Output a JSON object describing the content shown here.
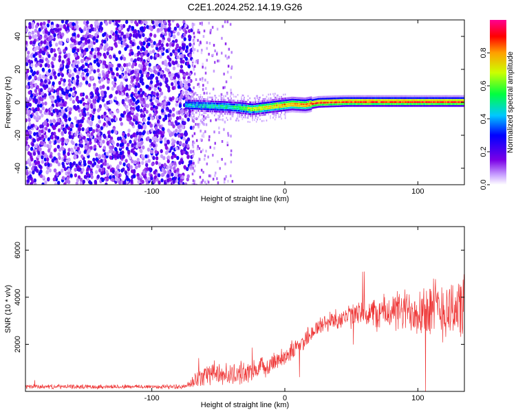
{
  "title": "C2E1.2024.252.14.19.G26",
  "chart_data": [
    {
      "type": "heatmap",
      "xlabel": "Height of straight line (km)",
      "ylabel": "Frequency (Hz)",
      "xlim": [
        -195,
        135
      ],
      "ylim": [
        -50,
        50
      ],
      "xticks": [
        -100,
        0,
        100
      ],
      "yticks": [
        -40,
        -20,
        0,
        20,
        40
      ],
      "noise_region_x": [
        -195,
        -70
      ],
      "sparse_region_x": [
        -70,
        -40
      ],
      "tone_track": {
        "x": [
          -75,
          -60,
          -45,
          -35,
          -25,
          -15,
          -5,
          5,
          15,
          25,
          45,
          80,
          135
        ],
        "freq": [
          -1.5,
          -2,
          -2.5,
          -3,
          -4,
          -3,
          -2,
          -1,
          -1.5,
          0,
          0.5,
          0.5,
          0.5
        ],
        "amplitude": [
          0.45,
          0.5,
          0.55,
          0.6,
          0.75,
          0.8,
          0.85,
          0.85,
          0.9,
          0.95,
          0.95,
          0.95,
          0.95
        ]
      },
      "colorbar": {
        "label": "Normalized spectral amplitude",
        "range": [
          0,
          1
        ],
        "ticks": [
          0.0,
          0.2,
          0.4,
          0.6,
          0.8
        ],
        "colormap": "rainbow (white-violet-blue-cyan-green-yellow-red-magenta)"
      }
    },
    {
      "type": "line",
      "xlabel": "Height of straight line (km)",
      "ylabel": "SNR (10 * v/v)",
      "xlim": [
        -195,
        135
      ],
      "ylim": [
        0,
        7000
      ],
      "xticks": [
        -100,
        0,
        100
      ],
      "yticks": [
        2000,
        4000,
        6000
      ],
      "color": "#ee3333",
      "series_envelope": {
        "x": [
          -195,
          -75,
          -70,
          -60,
          -50,
          -40,
          -30,
          -20,
          -10,
          0,
          10,
          20,
          30,
          40,
          50,
          60,
          70,
          80,
          90,
          100,
          110,
          120,
          135
        ],
        "mean": [
          200,
          200,
          350,
          800,
          750,
          700,
          800,
          900,
          1200,
          1500,
          1900,
          2500,
          2900,
          3100,
          3200,
          3300,
          3300,
          3400,
          3400,
          3500,
          3500,
          3500,
          3600
        ],
        "spread": [
          90,
          90,
          250,
          500,
          450,
          450,
          450,
          450,
          400,
          400,
          400,
          400,
          400,
          450,
          500,
          600,
          700,
          800,
          900,
          1100,
          1300,
          1300,
          1300
        ]
      }
    }
  ]
}
